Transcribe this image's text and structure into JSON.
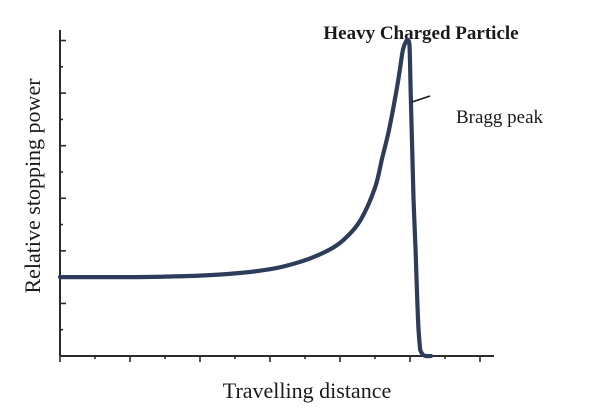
{
  "chart_data": {
    "type": "line",
    "title": "Heavy Charged Particle",
    "xlabel": "Travelling distance",
    "ylabel": "Relative stopping power",
    "tick_labels_shown": false,
    "x_ticks": [
      0,
      1,
      2,
      3,
      4,
      5,
      6
    ],
    "y_ticks": [
      0,
      1,
      2,
      3,
      4,
      5,
      6
    ],
    "xlim": [
      0,
      6.2
    ],
    "ylim": [
      0,
      6.2
    ],
    "grid": false,
    "legend": "none",
    "series": [
      {
        "color": "#2e3c5c",
        "x": [
          0,
          0.5,
          1.0,
          1.5,
          2.0,
          2.5,
          3.0,
          3.3,
          3.6,
          3.9,
          4.1,
          4.3,
          4.5,
          4.6,
          4.7,
          4.8,
          4.85,
          4.9,
          4.95,
          4.97,
          4.99,
          5.0,
          5.01,
          5.03,
          5.05,
          5.08,
          5.1,
          5.12,
          5.14,
          5.15,
          5.18,
          5.22,
          5.3
        ],
        "y": [
          1.5,
          1.5,
          1.5,
          1.51,
          1.53,
          1.57,
          1.65,
          1.74,
          1.87,
          2.06,
          2.27,
          2.6,
          3.2,
          3.75,
          4.3,
          5.0,
          5.4,
          5.83,
          6.0,
          6.0,
          5.95,
          5.6,
          5.0,
          4.0,
          3.0,
          2.0,
          1.2,
          0.55,
          0.2,
          0.1,
          0.03,
          0.0,
          0.0
        ]
      }
    ],
    "annotations": [
      {
        "text": "Bragg peak",
        "x": 5.0,
        "y": 4.85
      }
    ]
  }
}
